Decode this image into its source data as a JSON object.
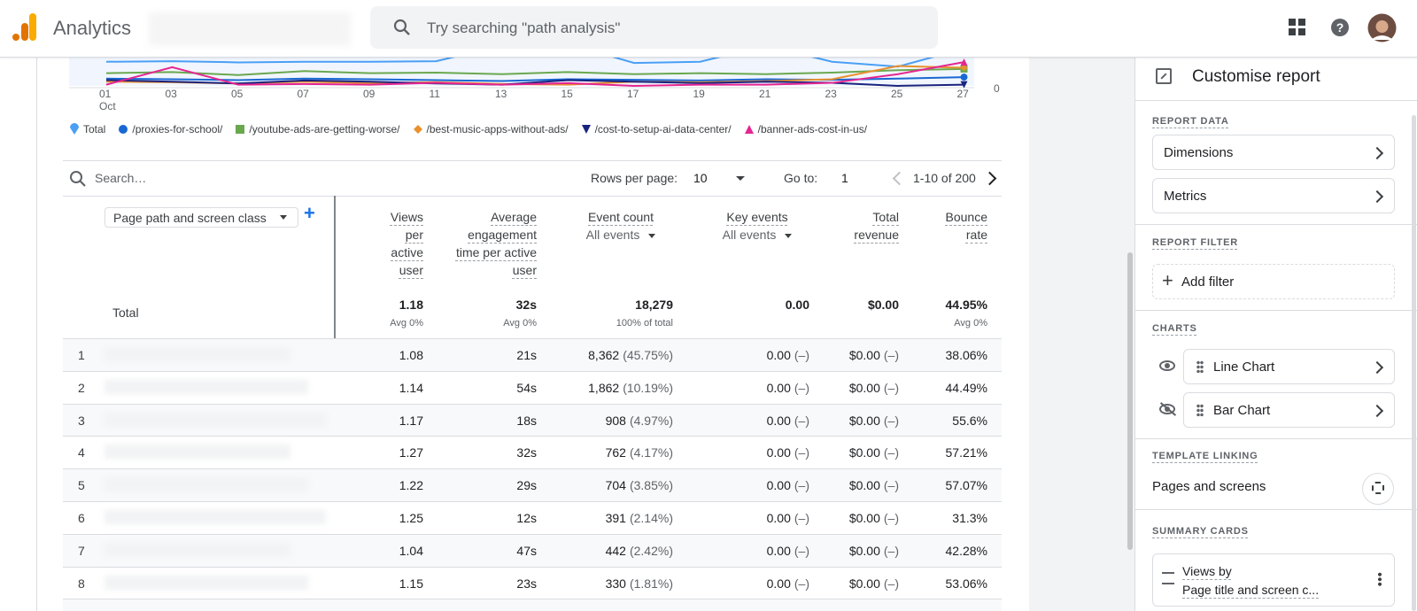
{
  "header": {
    "product": "Analytics",
    "search_placeholder": "Try searching \"path analysis\""
  },
  "chart": {
    "type": "line",
    "categories": [
      "01",
      "03",
      "05",
      "07",
      "09",
      "11",
      "13",
      "15",
      "17",
      "19",
      "21",
      "23",
      "25",
      "27"
    ],
    "month_label": "Oct",
    "y2lim": [
      0,
      100
    ],
    "y2ticks": [
      0
    ],
    "series": [
      {
        "name": "Total",
        "color": "#4a9ff5",
        "axis": "y2",
        "values": [
          86,
          88,
          84,
          86,
          86,
          88,
          140,
          145,
          82,
          86,
          140,
          86,
          70,
          130
        ]
      },
      {
        "name": "/proxies-for-school/",
        "color": "#1967d2",
        "axis": "y2",
        "values": [
          30,
          28,
          25,
          30,
          28,
          25,
          22,
          28,
          26,
          24,
          28,
          26,
          30,
          35
        ]
      },
      {
        "name": "/youtube-ads-are-getting-worse/",
        "color": "#6aa84f",
        "axis": "y2",
        "values": [
          48,
          52,
          42,
          55,
          48,
          50,
          45,
          52,
          45,
          48,
          45,
          50,
          58,
          62
        ]
      },
      {
        "name": "/best-music-apps-without-ads/",
        "color": "#e8912d",
        "axis": "y2",
        "values": [
          20,
          18,
          14,
          20,
          15,
          18,
          12,
          10,
          20,
          18,
          22,
          28,
          72,
          66
        ]
      },
      {
        "name": "/cost-to-setup-ai-data-center/",
        "color": "#1a237e",
        "axis": "y2",
        "values": [
          25,
          20,
          14,
          24,
          20,
          14,
          10,
          25,
          20,
          15,
          20,
          16,
          6,
          10
        ]
      },
      {
        "name": "/banner-ads-cost-in-us/",
        "color": "#e52592",
        "axis": "y2",
        "values": [
          10,
          68,
          10,
          12,
          10,
          16,
          10,
          15,
          6,
          10,
          10,
          16,
          45,
          85
        ]
      }
    ]
  },
  "toolbar": {
    "search_placeholder": "Search…",
    "rows_per_page_label": "Rows per page:",
    "rows_per_page": "10",
    "goto_label": "Go to:",
    "goto": "1",
    "range": "1-10 of 200"
  },
  "table": {
    "dimension": "Page path and screen class",
    "columns": [
      {
        "title": "Views per active user"
      },
      {
        "title": "Average engagement time per active user"
      },
      {
        "title": "Event count",
        "filter": "All events"
      },
      {
        "title": "Key events",
        "filter": "All events"
      },
      {
        "title": "Total revenue"
      },
      {
        "title": "Bounce rate"
      }
    ],
    "total": {
      "label": "Total",
      "cells": [
        {
          "value": "1.18",
          "note": "Avg 0%"
        },
        {
          "value": "32s",
          "note": "Avg 0%"
        },
        {
          "value": "18,279",
          "note": "100% of total"
        },
        {
          "value": "0.00"
        },
        {
          "value": "$0.00"
        },
        {
          "value": "44.95%",
          "note": "Avg 0%"
        }
      ]
    },
    "rows": [
      {
        "index": 1,
        "cells": [
          "1.08",
          "21s",
          {
            "value": "8,362",
            "share": "(45.75%)"
          },
          {
            "value": "0.00",
            "share": "(–)"
          },
          {
            "value": "$0.00",
            "share": "(–)"
          },
          "38.06%"
        ]
      },
      {
        "index": 2,
        "cells": [
          "1.14",
          "54s",
          {
            "value": "1,862",
            "share": "(10.19%)"
          },
          {
            "value": "0.00",
            "share": "(–)"
          },
          {
            "value": "$0.00",
            "share": "(–)"
          },
          "44.49%"
        ]
      },
      {
        "index": 3,
        "cells": [
          "1.17",
          "18s",
          {
            "value": "908",
            "share": "(4.97%)"
          },
          {
            "value": "0.00",
            "share": "(–)"
          },
          {
            "value": "$0.00",
            "share": "(–)"
          },
          "55.6%"
        ]
      },
      {
        "index": 4,
        "cells": [
          "1.27",
          "32s",
          {
            "value": "762",
            "share": "(4.17%)"
          },
          {
            "value": "0.00",
            "share": "(–)"
          },
          {
            "value": "$0.00",
            "share": "(–)"
          },
          "57.21%"
        ]
      },
      {
        "index": 5,
        "cells": [
          "1.22",
          "29s",
          {
            "value": "704",
            "share": "(3.85%)"
          },
          {
            "value": "0.00",
            "share": "(–)"
          },
          {
            "value": "$0.00",
            "share": "(–)"
          },
          "57.07%"
        ]
      },
      {
        "index": 6,
        "cells": [
          "1.25",
          "12s",
          {
            "value": "391",
            "share": "(2.14%)"
          },
          {
            "value": "0.00",
            "share": "(–)"
          },
          {
            "value": "$0.00",
            "share": "(–)"
          },
          "31.3%"
        ]
      },
      {
        "index": 7,
        "cells": [
          "1.04",
          "47s",
          {
            "value": "442",
            "share": "(2.42%)"
          },
          {
            "value": "0.00",
            "share": "(–)"
          },
          {
            "value": "$0.00",
            "share": "(–)"
          },
          "42.28%"
        ]
      },
      {
        "index": 8,
        "cells": [
          "1.15",
          "23s",
          {
            "value": "330",
            "share": "(1.81%)"
          },
          {
            "value": "0.00",
            "share": "(–)"
          },
          {
            "value": "$0.00",
            "share": "(–)"
          },
          "53.06%"
        ]
      }
    ]
  },
  "panel": {
    "title": "Customise report",
    "sections": [
      {
        "heading": "REPORT DATA",
        "items": [
          "Dimensions",
          "Metrics"
        ]
      },
      {
        "heading": "REPORT FILTER",
        "items": [
          "Add filter"
        ]
      },
      {
        "heading": "CHARTS",
        "items": [
          "Line Chart",
          "Bar Chart"
        ]
      },
      {
        "heading": "TEMPLATE LINKING",
        "items": [
          "Pages and screens"
        ]
      },
      {
        "heading": "SUMMARY CARDS",
        "items": [
          "Views by",
          "Page title and screen c..."
        ]
      }
    ]
  }
}
